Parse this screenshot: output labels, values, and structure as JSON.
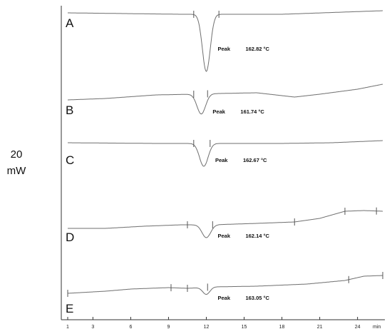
{
  "figure": {
    "y_scale_value": "20",
    "y_scale_unit": "mW"
  },
  "chart_data": {
    "type": "line",
    "x_unit": "min",
    "x_ticks": [
      1,
      3,
      6,
      9,
      12,
      15,
      18,
      21,
      24
    ],
    "xlim": [
      1,
      26
    ],
    "grid": false,
    "traces": [
      {
        "label": "A",
        "peak_text": "Peak",
        "peak_value": "162.82 °C",
        "peak_min": 12,
        "baseline": [
          [
            1,
            18
          ],
          [
            10,
            20
          ],
          [
            12.5,
            20
          ],
          [
            18,
            20
          ],
          [
            26,
            15
          ]
        ],
        "markers_min": [
          11.0,
          13.0
        ]
      },
      {
        "label": "B",
        "peak_text": "Peak",
        "peak_value": "161.74 °C",
        "peak_min": 11.6,
        "baseline": [
          [
            1,
            140
          ],
          [
            4,
            138
          ],
          [
            8,
            133
          ],
          [
            11,
            132
          ],
          [
            13,
            131
          ],
          [
            16,
            130
          ],
          [
            19,
            136
          ],
          [
            21,
            132
          ],
          [
            24,
            125
          ],
          [
            26,
            118
          ]
        ],
        "markers_min": [
          11.0,
          12.1
        ]
      },
      {
        "label": "C",
        "peak_text": "Peak",
        "peak_value": "162.67 °C",
        "peak_min": 11.8,
        "baseline": [
          [
            1,
            200
          ],
          [
            8,
            201
          ],
          [
            11,
            201
          ],
          [
            12.5,
            201
          ],
          [
            18,
            201
          ],
          [
            22,
            200
          ],
          [
            26,
            197
          ]
        ],
        "markers_min": [
          11.0,
          12.3
        ]
      },
      {
        "label": "D",
        "peak_text": "Peak",
        "peak_value": "162.14 °C",
        "peak_min": 12,
        "baseline": [
          [
            1,
            320
          ],
          [
            4,
            320
          ],
          [
            7,
            317
          ],
          [
            10,
            315
          ],
          [
            12.5,
            315
          ],
          [
            16,
            313
          ],
          [
            19,
            311
          ],
          [
            21,
            306
          ],
          [
            23,
            296
          ],
          [
            24.5,
            295
          ],
          [
            26,
            296
          ]
        ],
        "markers_min": [
          10.5,
          12.5,
          19,
          23,
          25.5
        ]
      },
      {
        "label": "E",
        "peak_text": "Peak",
        "peak_value": "163.05 °C",
        "peak_min": 12,
        "baseline": [
          [
            1,
            411
          ],
          [
            4,
            408
          ],
          [
            6,
            405
          ],
          [
            9,
            403
          ],
          [
            10.5,
            404
          ],
          [
            12.5,
            402
          ],
          [
            16,
            401
          ],
          [
            20,
            398
          ],
          [
            23,
            393
          ],
          [
            24.5,
            387
          ],
          [
            26,
            386
          ]
        ],
        "markers_min": [
          1,
          9.2,
          10.5,
          12.1,
          23.3,
          26
        ]
      }
    ]
  }
}
